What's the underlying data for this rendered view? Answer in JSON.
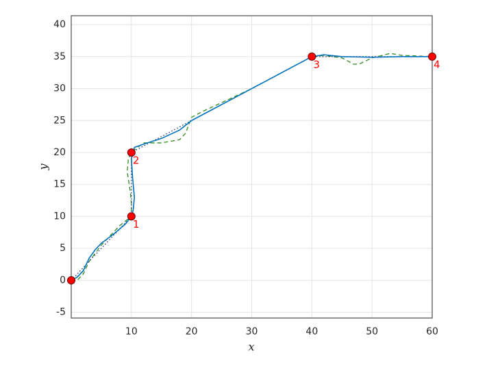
{
  "chart_data": {
    "type": "line",
    "x_label": "x",
    "y_label": "y",
    "xlim": [
      0,
      60
    ],
    "ylim": [
      -5.9,
      41.4
    ],
    "xticks": [
      10,
      20,
      30,
      40,
      50,
      60
    ],
    "yticks": [
      -5,
      0,
      5,
      10,
      15,
      20,
      25,
      30,
      35,
      40
    ],
    "grid": true,
    "series": [
      {
        "color": "#2E8B1E",
        "style": "dashed",
        "x": [
          0,
          1,
          2,
          3,
          5,
          8,
          10,
          10,
          9.8,
          9.3,
          9.5,
          10,
          12,
          15,
          18,
          19,
          20,
          22,
          25,
          30,
          35,
          40,
          42,
          45,
          47,
          48,
          50,
          53,
          55,
          60
        ],
        "values": [
          0,
          0,
          1,
          3,
          5.5,
          8.5,
          10,
          12,
          14,
          17,
          19,
          20,
          21.5,
          21.5,
          22,
          23,
          25.5,
          26.5,
          27.8,
          30,
          32.5,
          35,
          35.2,
          34.8,
          33.8,
          33.9,
          34.8,
          35.5,
          35.2,
          35
        ]
      },
      {
        "color": "#1F2F6F",
        "style": "dotted",
        "x": [
          0,
          10,
          10,
          40,
          60
        ],
        "values": [
          0,
          10,
          20,
          35,
          35
        ]
      },
      {
        "color": "#0072BD",
        "style": "solid",
        "x": [
          0,
          1,
          2,
          3,
          4,
          5,
          7,
          9,
          10,
          10.3,
          10.5,
          10.2,
          10,
          10.5,
          12,
          15,
          18,
          20,
          25,
          30,
          35,
          40,
          42,
          45,
          50,
          55,
          60
        ],
        "values": [
          0,
          0.5,
          1.5,
          3.5,
          4.8,
          5.8,
          7.2,
          8.8,
          10,
          11,
          13,
          16,
          19,
          20.8,
          21.3,
          22.2,
          23.5,
          25,
          27.5,
          30,
          32.5,
          35,
          35.3,
          35,
          34.9,
          35,
          35
        ]
      },
      {
        "color": "#FF0000",
        "style": "marker",
        "x": [
          0,
          10,
          10,
          40,
          60
        ],
        "values": [
          0,
          10,
          20,
          35,
          35
        ],
        "point_labels": [
          null,
          "1",
          "2",
          "3",
          "4"
        ]
      }
    ]
  }
}
